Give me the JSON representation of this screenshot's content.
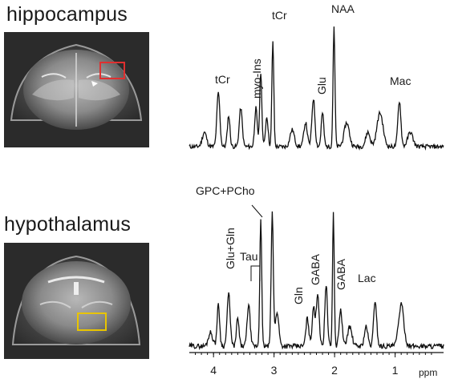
{
  "panels": [
    {
      "title": "hippocampus",
      "roi_color": "#e03030"
    },
    {
      "title": "hypothalamus",
      "roi_color": "#e8c400"
    }
  ],
  "chart_data": [
    {
      "type": "line",
      "title": "hippocampus",
      "xlabel": "ppm",
      "xlim": [
        4.4,
        0.2
      ],
      "x_reversed": true,
      "y_axis": "none",
      "peaks": [
        {
          "label": "tCr",
          "ppm": 3.92,
          "height": 0.45
        },
        {
          "label": "myo-Ins",
          "ppm": 3.55,
          "height": 0.32
        },
        {
          "label": "tCr",
          "ppm": 3.02,
          "height": 0.88
        },
        {
          "label": "Glu",
          "ppm": 2.35,
          "height": 0.4
        },
        {
          "label": "NAA",
          "ppm": 2.01,
          "height": 1.0
        },
        {
          "label": "Mac",
          "ppm": 0.93,
          "height": 0.38
        }
      ]
    },
    {
      "type": "line",
      "title": "hypothalamus",
      "xlabel": "ppm",
      "xlim": [
        4.4,
        0.2
      ],
      "x_reversed": true,
      "x_ticks": [
        4,
        3,
        2,
        1
      ],
      "y_axis": "none",
      "peaks": [
        {
          "label": "Glu+Gln",
          "ppm": 3.75,
          "height": 0.38
        },
        {
          "label": "Tau",
          "ppm": 3.42,
          "height": 0.3
        },
        {
          "label": "GPC+PCho",
          "ppm": 3.22,
          "height": 0.93
        },
        {
          "label": "Gln",
          "ppm": 2.45,
          "height": 0.2
        },
        {
          "label": "GABA",
          "ppm": 2.28,
          "height": 0.38
        },
        {
          "label": "GABA",
          "ppm": 1.9,
          "height": 0.26
        },
        {
          "label": "Lac",
          "ppm": 1.33,
          "height": 0.33
        }
      ]
    }
  ]
}
